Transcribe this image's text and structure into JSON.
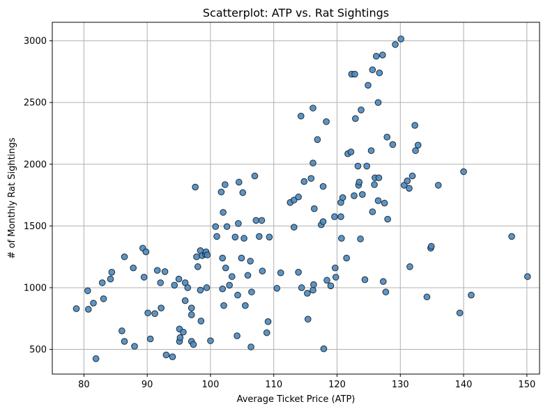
{
  "chart_data": {
    "type": "scatter",
    "title": "Scatterplot: ATP vs. Rat Sightings",
    "xlabel": "Average Ticket Price (ATP)",
    "ylabel": "# of Monthly Rat Sightings",
    "xlim": [
      75,
      152
    ],
    "ylim": [
      300,
      3150
    ],
    "xticks": [
      80,
      90,
      100,
      110,
      120,
      130,
      140,
      150
    ],
    "yticks": [
      500,
      1000,
      1500,
      2000,
      2500,
      3000
    ],
    "grid": true,
    "colors": {
      "marker_fill": "#4a8abf",
      "marker_edge": "#1f2a36",
      "grid": "#b0b0b0"
    },
    "points": [
      [
        78.8,
        830
      ],
      [
        80.6,
        975
      ],
      [
        80.7,
        825
      ],
      [
        81.5,
        875
      ],
      [
        81.9,
        425
      ],
      [
        82.9,
        1040
      ],
      [
        83.1,
        910
      ],
      [
        84.2,
        1070
      ],
      [
        84.4,
        1125
      ],
      [
        86.0,
        650
      ],
      [
        86.4,
        1250
      ],
      [
        86.4,
        565
      ],
      [
        87.8,
        1160
      ],
      [
        88.0,
        525
      ],
      [
        89.3,
        1320
      ],
      [
        89.5,
        1085
      ],
      [
        89.8,
        1290
      ],
      [
        90.1,
        795
      ],
      [
        90.5,
        585
      ],
      [
        91.2,
        790
      ],
      [
        91.6,
        1140
      ],
      [
        92.2,
        835
      ],
      [
        92.1,
        1040
      ],
      [
        92.8,
        1130
      ],
      [
        93.0,
        455
      ],
      [
        94.0,
        440
      ],
      [
        94.3,
        1020
      ],
      [
        95.0,
        1070
      ],
      [
        95.1,
        665
      ],
      [
        95.1,
        565
      ],
      [
        95.2,
        595
      ],
      [
        95.7,
        640
      ],
      [
        96.0,
        1040
      ],
      [
        96.0,
        895
      ],
      [
        96.4,
        1000
      ],
      [
        97.0,
        835
      ],
      [
        97.0,
        780
      ],
      [
        97.0,
        565
      ],
      [
        97.3,
        540
      ],
      [
        97.6,
        1815
      ],
      [
        97.8,
        1250
      ],
      [
        98.0,
        1170
      ],
      [
        98.4,
        1300
      ],
      [
        98.4,
        980
      ],
      [
        98.5,
        730
      ],
      [
        98.7,
        1260
      ],
      [
        99.2,
        1270
      ],
      [
        99.3,
        1290
      ],
      [
        99.4,
        1000
      ],
      [
        99.5,
        1265
      ],
      [
        100.0,
        570
      ],
      [
        100.8,
        1495
      ],
      [
        101.0,
        1415
      ],
      [
        101.7,
        1775
      ],
      [
        101.9,
        1240
      ],
      [
        101.9,
        990
      ],
      [
        102.0,
        1610
      ],
      [
        102.1,
        855
      ],
      [
        102.3,
        1835
      ],
      [
        102.4,
        1160
      ],
      [
        102.6,
        1495
      ],
      [
        103.0,
        1020
      ],
      [
        103.4,
        1090
      ],
      [
        103.9,
        1410
      ],
      [
        104.2,
        610
      ],
      [
        104.3,
        940
      ],
      [
        104.4,
        1520
      ],
      [
        104.5,
        1855
      ],
      [
        104.9,
        1240
      ],
      [
        105.1,
        1770
      ],
      [
        105.3,
        1400
      ],
      [
        105.5,
        855
      ],
      [
        105.9,
        1100
      ],
      [
        106.3,
        1215
      ],
      [
        106.4,
        520
      ],
      [
        106.5,
        965
      ],
      [
        107.0,
        1905
      ],
      [
        107.2,
        1545
      ],
      [
        107.7,
        1415
      ],
      [
        108.1,
        1545
      ],
      [
        108.2,
        1135
      ],
      [
        108.9,
        635
      ],
      [
        109.1,
        725
      ],
      [
        109.3,
        1410
      ],
      [
        110.5,
        995
      ],
      [
        111.1,
        1120
      ],
      [
        112.6,
        1690
      ],
      [
        113.2,
        1710
      ],
      [
        113.2,
        1490
      ],
      [
        113.9,
        1735
      ],
      [
        113.9,
        1125
      ],
      [
        114.3,
        2390
      ],
      [
        114.4,
        1000
      ],
      [
        114.8,
        1860
      ],
      [
        115.3,
        955
      ],
      [
        115.4,
        745
      ],
      [
        115.9,
        1885
      ],
      [
        116.2,
        2455
      ],
      [
        116.2,
        2010
      ],
      [
        116.2,
        980
      ],
      [
        116.3,
        1025
      ],
      [
        116.4,
        1640
      ],
      [
        116.9,
        2200
      ],
      [
        117.5,
        1510
      ],
      [
        117.8,
        1535
      ],
      [
        117.8,
        1820
      ],
      [
        117.9,
        505
      ],
      [
        118.3,
        2345
      ],
      [
        118.4,
        1060
      ],
      [
        119.0,
        1015
      ],
      [
        119.6,
        1575
      ],
      [
        119.7,
        1160
      ],
      [
        119.8,
        1085
      ],
      [
        120.6,
        1690
      ],
      [
        120.7,
        1400
      ],
      [
        120.9,
        1730
      ],
      [
        120.6,
        1575
      ],
      [
        121.5,
        1240
      ],
      [
        121.7,
        2085
      ],
      [
        122.2,
        2100
      ],
      [
        122.3,
        2730
      ],
      [
        122.7,
        1745
      ],
      [
        122.8,
        2730
      ],
      [
        122.9,
        2370
      ],
      [
        123.3,
        1985
      ],
      [
        123.4,
        1830
      ],
      [
        123.5,
        1855
      ],
      [
        123.7,
        1395
      ],
      [
        123.8,
        2440
      ],
      [
        124.0,
        1755
      ],
      [
        124.4,
        1065
      ],
      [
        124.7,
        1985
      ],
      [
        124.9,
        2640
      ],
      [
        125.4,
        2110
      ],
      [
        125.6,
        2765
      ],
      [
        125.6,
        1615
      ],
      [
        125.9,
        1835
      ],
      [
        126.0,
        1890
      ],
      [
        126.2,
        2875
      ],
      [
        126.5,
        2500
      ],
      [
        126.5,
        1705
      ],
      [
        126.6,
        1890
      ],
      [
        126.7,
        2740
      ],
      [
        127.2,
        2885
      ],
      [
        127.3,
        1050
      ],
      [
        127.5,
        1685
      ],
      [
        127.7,
        965
      ],
      [
        127.9,
        2220
      ],
      [
        128.0,
        1555
      ],
      [
        128.8,
        2160
      ],
      [
        129.2,
        2970
      ],
      [
        130.1,
        3015
      ],
      [
        130.6,
        1830
      ],
      [
        131.1,
        1865
      ],
      [
        131.4,
        1805
      ],
      [
        131.5,
        1170
      ],
      [
        131.9,
        1905
      ],
      [
        132.3,
        2315
      ],
      [
        132.4,
        2110
      ],
      [
        132.8,
        2155
      ],
      [
        134.2,
        925
      ],
      [
        134.8,
        1320
      ],
      [
        134.9,
        1335
      ],
      [
        136.0,
        1830
      ],
      [
        139.4,
        795
      ],
      [
        140.0,
        1940
      ],
      [
        141.2,
        940
      ],
      [
        147.6,
        1415
      ],
      [
        150.1,
        1090
      ]
    ]
  }
}
